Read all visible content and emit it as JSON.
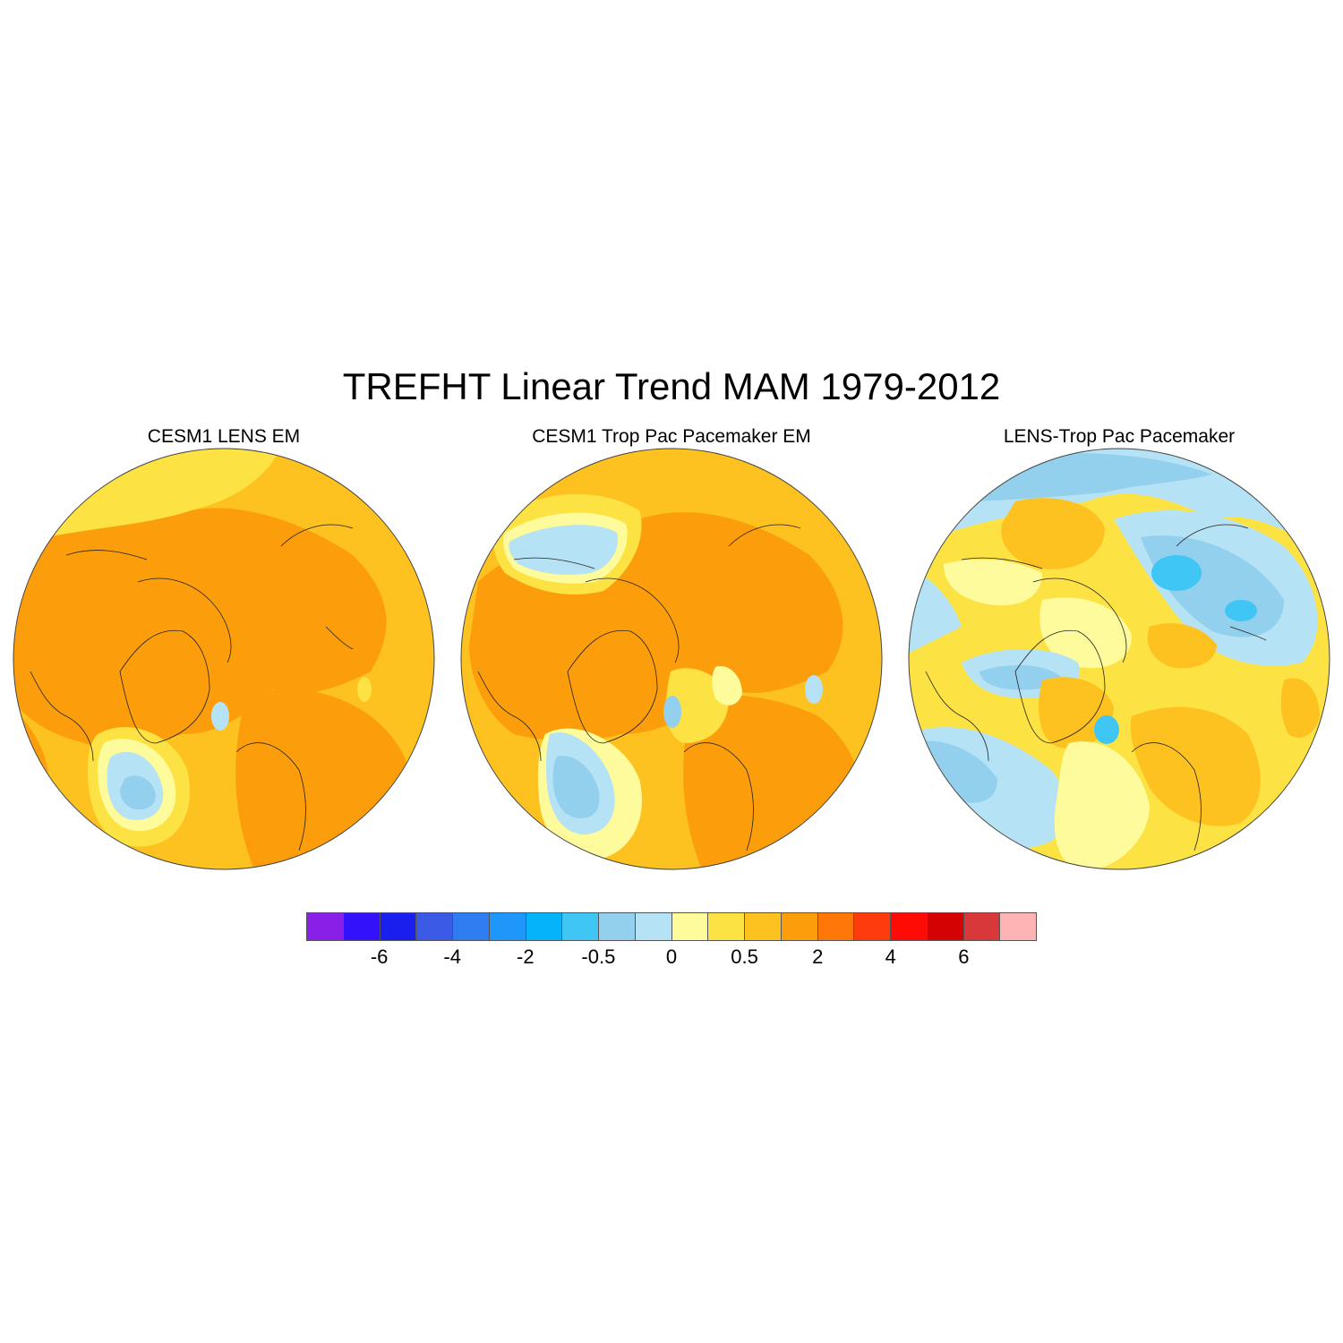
{
  "title": "TREFHT Linear Trend MAM 1979-2012",
  "panels": [
    {
      "title": "CESM1 LENS EM",
      "background_level": "orange"
    },
    {
      "title": "CESM1 Trop Pac Pacemaker EM",
      "background_level": "orange"
    },
    {
      "title": "LENS-Trop Pac Pacemaker",
      "background_level": "yellow"
    }
  ],
  "colorbar": {
    "colors": [
      "#8a1fe8",
      "#3311fa",
      "#1a1fee",
      "#3a5ae6",
      "#2e7cf0",
      "#1e96fa",
      "#05b3fa",
      "#3fc6f5",
      "#92d0ee",
      "#b6e2f5",
      "#fdfb9b",
      "#fde244",
      "#fdc21f",
      "#fc9e0b",
      "#fd7808",
      "#fd3b0c",
      "#fd0b05",
      "#d40202",
      "#d8383a",
      "#feb3b4"
    ],
    "labels": [
      "-6",
      "-4",
      "-2",
      "-0.5",
      "0",
      "0.5",
      "2",
      "4",
      "6"
    ]
  }
}
